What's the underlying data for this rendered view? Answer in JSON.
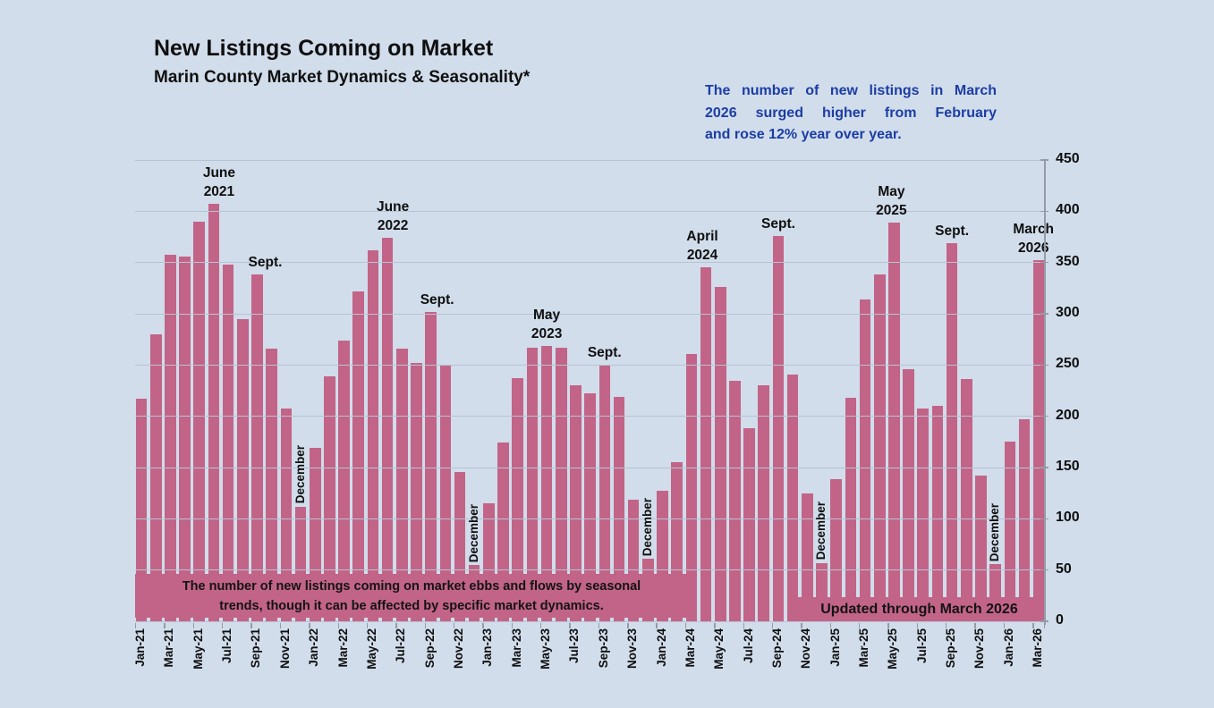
{
  "header": {
    "title": "New Listings Coming on Market",
    "subtitle": "Marin County Market Dynamics & Seasonality*"
  },
  "callout": {
    "lines": [
      "The number of new listings in March",
      "2026 surged higher from February",
      "and rose 12% year over year."
    ],
    "color": "#1c3da4"
  },
  "notes": {
    "seasonal_lines": [
      "The number of new listings coming on market ebbs and flows by seasonal",
      "trends, though it can be affected by specific market dynamics."
    ],
    "updated": "Updated through March 2026"
  },
  "chart_data": {
    "type": "bar",
    "title": "New Listings Coming on Market",
    "xlabel": "",
    "ylabel": "",
    "ylim": [
      0,
      450
    ],
    "yticks": [
      0,
      50,
      100,
      150,
      200,
      250,
      300,
      350,
      400,
      450
    ],
    "yaxis_side": "right",
    "grid": true,
    "bar_color": "#c26487",
    "background_color": "#d1ddeb",
    "xtick_label_every": 2,
    "x": [
      "Jan-21",
      "Feb-21",
      "Mar-21",
      "Apr-21",
      "May-21",
      "Jun-21",
      "Jul-21",
      "Aug-21",
      "Sep-21",
      "Oct-21",
      "Nov-21",
      "Dec-21",
      "Jan-22",
      "Feb-22",
      "Mar-22",
      "Apr-22",
      "May-22",
      "Jun-22",
      "Jul-22",
      "Aug-22",
      "Sep-22",
      "Oct-22",
      "Nov-22",
      "Dec-22",
      "Jan-23",
      "Feb-23",
      "Mar-23",
      "Apr-23",
      "May-23",
      "Jun-23",
      "Jul-23",
      "Aug-23",
      "Sep-23",
      "Oct-23",
      "Nov-23",
      "Dec-23",
      "Jan-24",
      "Feb-24",
      "Mar-24",
      "Apr-24",
      "May-24",
      "Jun-24",
      "Jul-24",
      "Aug-24",
      "Sep-24",
      "Oct-24",
      "Nov-24",
      "Dec-24",
      "Jan-25",
      "Feb-25",
      "Mar-25",
      "Apr-25",
      "May-25",
      "Jun-25",
      "Jul-25",
      "Aug-25",
      "Sep-25",
      "Oct-25",
      "Nov-25",
      "Dec-25",
      "Jan-26",
      "Feb-26",
      "Mar-26"
    ],
    "values": [
      217,
      280,
      358,
      356,
      390,
      407,
      348,
      295,
      338,
      266,
      208,
      112,
      169,
      239,
      274,
      322,
      362,
      374,
      266,
      252,
      302,
      250,
      146,
      55,
      115,
      174,
      237,
      267,
      269,
      267,
      230,
      222,
      250,
      219,
      119,
      61,
      127,
      155,
      261,
      345,
      326,
      235,
      188,
      230,
      376,
      241,
      125,
      57,
      139,
      218,
      314,
      338,
      389,
      246,
      208,
      210,
      369,
      236,
      142,
      56,
      175,
      197,
      352
    ],
    "peak_labels": [
      {
        "index": 5,
        "lines": [
          "June",
          "2021"
        ],
        "dx": 6
      },
      {
        "index": 8,
        "lines": [
          "Sept."
        ],
        "dx": 9
      },
      {
        "index": 17,
        "lines": [
          "June",
          "2022"
        ],
        "dx": 6
      },
      {
        "index": 20,
        "lines": [
          "Sept."
        ],
        "dx": 7
      },
      {
        "index": 28,
        "lines": [
          "May",
          "2023"
        ],
        "dx": 0
      },
      {
        "index": 32,
        "lines": [
          "Sept."
        ],
        "dx": 0
      },
      {
        "index": 39,
        "lines": [
          "April",
          "2024"
        ],
        "dx": -4
      },
      {
        "index": 44,
        "lines": [
          "Sept."
        ],
        "dx": 0
      },
      {
        "index": 52,
        "lines": [
          "May",
          "2025"
        ],
        "dx": -3
      },
      {
        "index": 56,
        "lines": [
          "Sept."
        ],
        "dx": 0
      },
      {
        "index": 62,
        "lines": [
          "March",
          "2026"
        ],
        "dx": -6
      }
    ],
    "december_label": "December",
    "december_indices": [
      11,
      23,
      35,
      47,
      59
    ]
  }
}
